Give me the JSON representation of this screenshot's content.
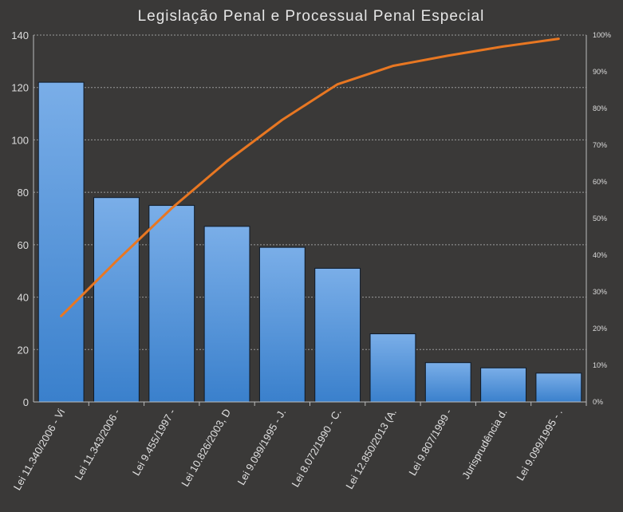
{
  "chart_data": {
    "type": "bar",
    "title": "Legislação Penal e Processual Penal Especial",
    "categories": [
      "Lei 11.340/2006 - Vi",
      "Lei 11.343/2006 -",
      "Lei 9.455/1997 -",
      "Lei 10.826/2003, D",
      "Lei 9.099/1995 - J.",
      "Lei 8.072/1990 - C.",
      "Lei 12.850/2013 (A.",
      "Lei 9.807/1999 -",
      "Jurisprudência d.",
      "Lei 9.099/1995 - ."
    ],
    "values": [
      122,
      78,
      75,
      67,
      59,
      51,
      26,
      15,
      13,
      11
    ],
    "cumulative_percent": [
      23.4,
      38.4,
      52.8,
      65.6,
      76.9,
      86.6,
      91.6,
      94.4,
      96.9,
      99.0
    ],
    "ylim": [
      0,
      140
    ],
    "y_ticks": [
      "0",
      "20",
      "40",
      "60",
      "80",
      "100",
      "120",
      "140"
    ],
    "y2lim": [
      0,
      100
    ],
    "y2_ticks": [
      "0%",
      "10%",
      "20%",
      "30%",
      "40%",
      "50%",
      "60%",
      "70%",
      "80%",
      "90%",
      "100%"
    ],
    "grid": true,
    "colors": {
      "bar_top": "#7aaee8",
      "bar_bottom": "#3a80cc",
      "bar_border": "#0e1a28",
      "line": "#e87722",
      "grid": "#9a9a9a",
      "background": "#3a3938"
    }
  }
}
